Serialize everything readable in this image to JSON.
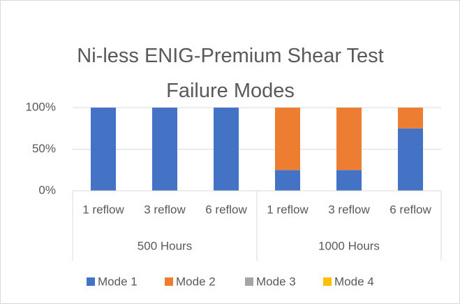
{
  "chart_data": {
    "type": "stacked_bar",
    "title": "Ni-less ENIG-Premium Shear Test Failure Modes",
    "groups": [
      {
        "name": "500 Hours",
        "categories": [
          "1 reflow",
          "3 reflow",
          "6 reflow"
        ]
      },
      {
        "name": "1000 Hours",
        "categories": [
          "1 reflow",
          "3 reflow",
          "6 reflow"
        ]
      }
    ],
    "series": [
      {
        "name": "Mode 1",
        "color": "#4472c4",
        "values": [
          100,
          100,
          100,
          25,
          25,
          75
        ]
      },
      {
        "name": "Mode 2",
        "color": "#ed7d31",
        "values": [
          0,
          0,
          0,
          75,
          75,
          25
        ]
      },
      {
        "name": "Mode 3",
        "color": "#a5a5a5",
        "values": [
          0,
          0,
          0,
          0,
          0,
          0
        ]
      },
      {
        "name": "Mode 4",
        "color": "#ffc000",
        "values": [
          0,
          0,
          0,
          0,
          0,
          0
        ]
      }
    ],
    "ylim": [
      0,
      100
    ],
    "yticks": [
      {
        "value": 0,
        "label": "0%"
      },
      {
        "value": 50,
        "label": "50%"
      },
      {
        "value": 100,
        "label": "100%"
      }
    ],
    "grid": true,
    "legend": "bottom"
  }
}
